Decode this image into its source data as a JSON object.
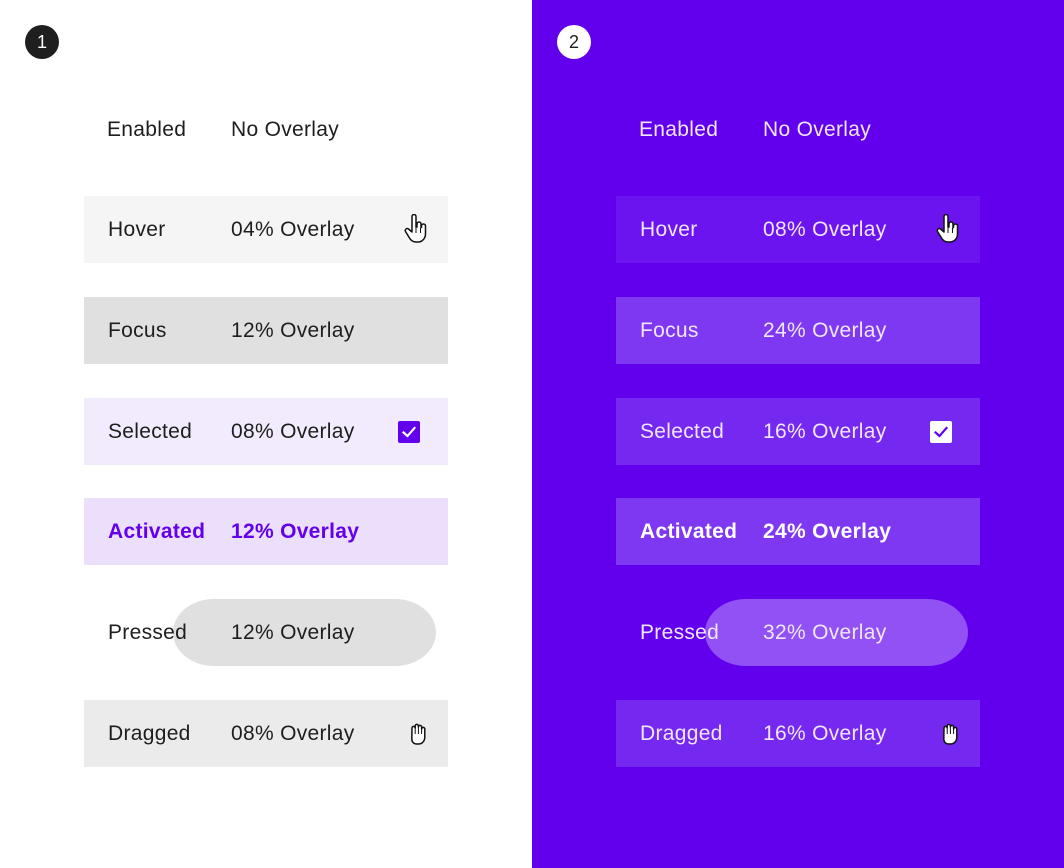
{
  "panels": [
    {
      "badge": "1",
      "rows": [
        {
          "label": "Enabled",
          "value": "No Overlay"
        },
        {
          "label": "Hover",
          "value": "04% Overlay",
          "icon": "pointer-hand-icon"
        },
        {
          "label": "Focus",
          "value": "12% Overlay"
        },
        {
          "label": "Selected",
          "value": "08% Overlay",
          "icon": "checkbox-checked-icon"
        },
        {
          "label": "Activated",
          "value": "12% Overlay"
        },
        {
          "label": "Pressed",
          "value": "12% Overlay"
        },
        {
          "label": "Dragged",
          "value": "08% Overlay",
          "icon": "grab-hand-icon"
        }
      ]
    },
    {
      "badge": "2",
      "rows": [
        {
          "label": "Enabled",
          "value": "No Overlay"
        },
        {
          "label": "Hover",
          "value": "08% Overlay",
          "icon": "pointer-hand-icon"
        },
        {
          "label": "Focus",
          "value": "24% Overlay"
        },
        {
          "label": "Selected",
          "value": "16% Overlay",
          "icon": "checkbox-checked-icon"
        },
        {
          "label": "Activated",
          "value": "24% Overlay"
        },
        {
          "label": "Pressed",
          "value": "32% Overlay"
        },
        {
          "label": "Dragged",
          "value": "16% Overlay",
          "icon": "grab-hand-icon"
        }
      ]
    }
  ],
  "colors": {
    "primary": "#6200ee",
    "light_background": "#ffffff",
    "dark_badge": "#1f1f1f"
  }
}
